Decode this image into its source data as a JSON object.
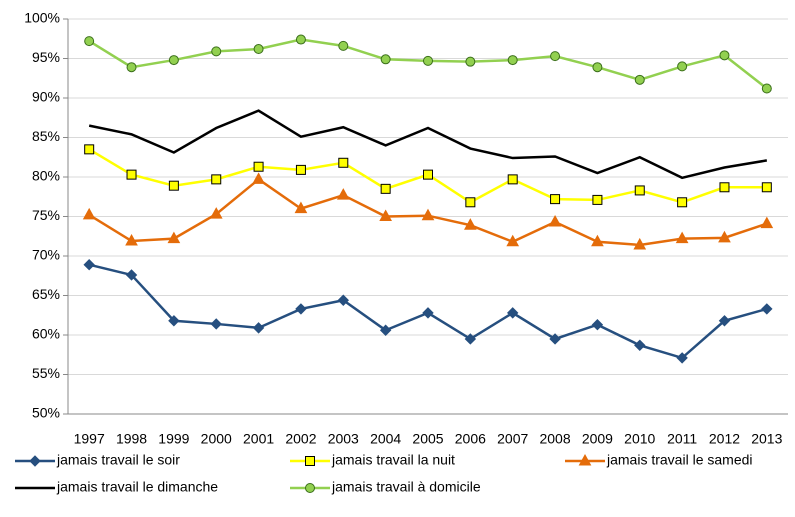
{
  "chart_data": {
    "type": "line",
    "categories": [
      "1997",
      "1998",
      "1999",
      "2000",
      "2001",
      "2002",
      "2003",
      "2004",
      "2005",
      "2006",
      "2007",
      "2008",
      "2009",
      "2010",
      "2011",
      "2012",
      "2013"
    ],
    "series": [
      {
        "name": "jamais travail le soir",
        "color": "#264f7f",
        "marker": "diamond",
        "marker_fill": "#264f7f",
        "marker_stroke": "#264f7f",
        "values": [
          68.9,
          67.6,
          61.8,
          61.4,
          60.9,
          63.3,
          64.4,
          60.6,
          62.8,
          59.5,
          62.8,
          59.5,
          61.3,
          58.7,
          57.1,
          61.8,
          63.3
        ]
      },
      {
        "name": "jamais travail la nuit",
        "color": "#ffff00",
        "marker": "square",
        "marker_fill": "#ffff00",
        "marker_stroke": "#000000",
        "values": [
          83.5,
          80.3,
          78.9,
          79.7,
          81.3,
          80.9,
          81.8,
          78.5,
          80.3,
          76.8,
          79.7,
          77.2,
          77.1,
          78.3,
          76.8,
          78.7,
          78.7
        ]
      },
      {
        "name": "jamais travail le samedi",
        "color": "#e46c0a",
        "marker": "triangle",
        "marker_fill": "#e46c0a",
        "marker_stroke": "#e46c0a",
        "values": [
          75.2,
          71.9,
          72.2,
          75.3,
          79.7,
          76.0,
          77.7,
          75.0,
          75.1,
          73.9,
          71.8,
          74.3,
          71.8,
          71.4,
          72.2,
          72.3,
          74.1
        ]
      },
      {
        "name": "jamais travail le dimanche",
        "color": "#000000",
        "marker": "none",
        "marker_fill": "#000000",
        "marker_stroke": "#000000",
        "values": [
          86.5,
          85.4,
          83.1,
          86.2,
          88.4,
          85.1,
          86.3,
          84.0,
          86.2,
          83.6,
          82.4,
          82.6,
          80.5,
          82.5,
          79.9,
          81.2,
          82.1
        ]
      },
      {
        "name": "jamais travail à domicile",
        "color": "#92d050",
        "marker": "circle",
        "marker_fill": "#92d050",
        "marker_stroke": "#3a6e1a",
        "values": [
          97.2,
          93.9,
          94.8,
          95.9,
          96.2,
          97.4,
          96.6,
          94.9,
          94.7,
          94.6,
          94.8,
          95.3,
          93.9,
          92.3,
          94.0,
          95.4,
          91.2
        ]
      }
    ],
    "ylim": [
      50,
      100
    ],
    "yticks": [
      {
        "value": 50,
        "label": "50%"
      },
      {
        "value": 55,
        "label": "55%"
      },
      {
        "value": 60,
        "label": "60%"
      },
      {
        "value": 65,
        "label": "65%"
      },
      {
        "value": 70,
        "label": "70%"
      },
      {
        "value": 75,
        "label": "75%"
      },
      {
        "value": 80,
        "label": "80%"
      },
      {
        "value": 85,
        "label": "85%"
      },
      {
        "value": 90,
        "label": "90%"
      },
      {
        "value": 95,
        "label": "95%"
      },
      {
        "value": 100,
        "label": "100%"
      }
    ],
    "grid": true,
    "legend": "bottom"
  }
}
